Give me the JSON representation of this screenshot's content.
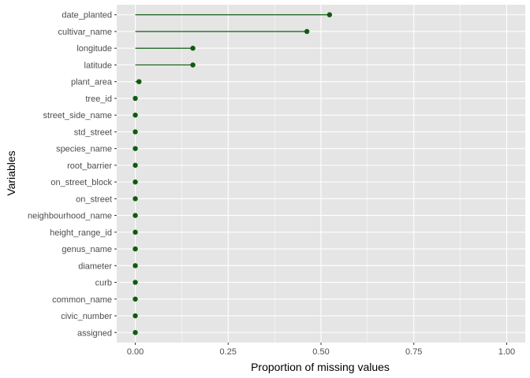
{
  "chart_data": {
    "type": "lollipop",
    "orientation": "horizontal",
    "xlabel": "Proportion of missing values",
    "ylabel": "Variables",
    "xlim": [
      -0.05,
      1.05
    ],
    "x_ticks": [
      0,
      0.25,
      0.5,
      0.75,
      1
    ],
    "x_tick_labels": [
      "0.00",
      "0.25",
      "0.50",
      "0.75",
      "1.00"
    ],
    "grid": true,
    "colors": {
      "panel": "#e5e5e5",
      "grid": "#ffffff",
      "mark": "#0e5c0e",
      "axis_text": "#4d4d4d",
      "axis_title": "#000000"
    },
    "categories": [
      "date_planted",
      "cultivar_name",
      "longitude",
      "latitude",
      "plant_area",
      "tree_id",
      "street_side_name",
      "std_street",
      "species_name",
      "root_barrier",
      "on_street_block",
      "on_street",
      "neighbourhood_name",
      "height_range_id",
      "genus_name",
      "diameter",
      "curb",
      "common_name",
      "civic_number",
      "assigned"
    ],
    "values": [
      0.523,
      0.462,
      0.155,
      0.155,
      0.01,
      0,
      0,
      0,
      0,
      0,
      0,
      0,
      0,
      0,
      0,
      0,
      0,
      0,
      0,
      0
    ]
  }
}
